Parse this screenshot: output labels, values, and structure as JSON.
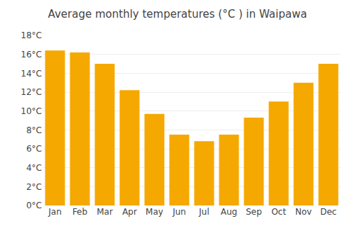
{
  "chart_data": {
    "type": "bar",
    "title": "Average monthly temperatures (°C ) in Waipawa",
    "categories": [
      "Jan",
      "Feb",
      "Mar",
      "Apr",
      "May",
      "Jun",
      "Jul",
      "Aug",
      "Sep",
      "Oct",
      "Nov",
      "Dec"
    ],
    "values": [
      16.4,
      16.2,
      15.0,
      12.2,
      9.7,
      7.5,
      6.8,
      7.5,
      9.3,
      11.0,
      13.0,
      15.0
    ],
    "color": "#F5A800",
    "ylim": [
      0,
      18
    ],
    "yticks": [
      {
        "value": 0,
        "label": "0°C"
      },
      {
        "value": 2,
        "label": "2°C"
      },
      {
        "value": 4,
        "label": "4°C"
      },
      {
        "value": 6,
        "label": "6°C"
      },
      {
        "value": 8,
        "label": "8°C"
      },
      {
        "value": 10,
        "label": "10°C"
      },
      {
        "value": 12,
        "label": "12°C"
      },
      {
        "value": 14,
        "label": "14°C"
      },
      {
        "value": 16,
        "label": "16°C"
      },
      {
        "value": 18,
        "label": "18°C"
      }
    ],
    "grid": true
  }
}
